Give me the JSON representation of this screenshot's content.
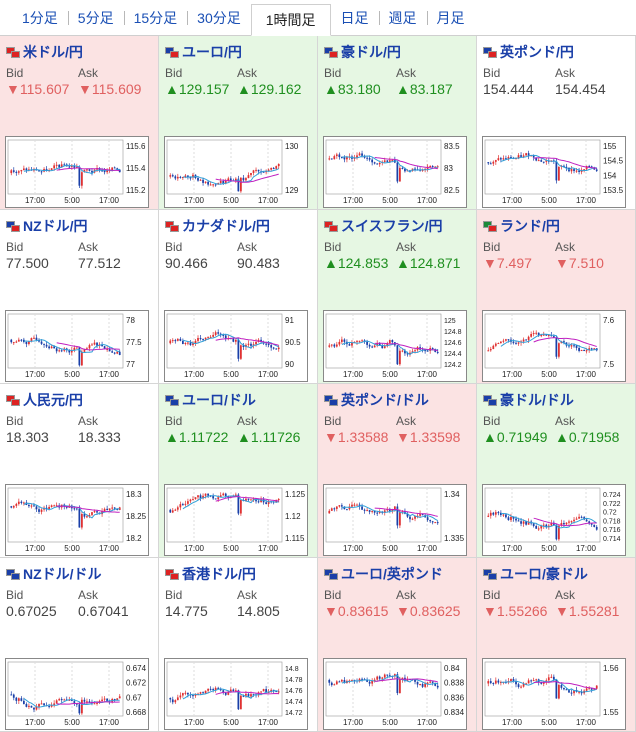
{
  "tabs": [
    {
      "label": "1分足",
      "active": false
    },
    {
      "label": "5分足",
      "active": false
    },
    {
      "label": "15分足",
      "active": false
    },
    {
      "label": "30分足",
      "active": false
    },
    {
      "label": "1時間足",
      "active": true
    },
    {
      "label": "日足",
      "active": false
    },
    {
      "label": "週足",
      "active": false
    },
    {
      "label": "月足",
      "active": false
    }
  ],
  "labels": {
    "bid": "Bid",
    "ask": "Ask"
  },
  "x_ticks": [
    "17:00",
    "5:00",
    "17:00"
  ],
  "colors": {
    "up": "#1f8f1f",
    "down": "#e06060",
    "bull_candle": "#e03030",
    "bear_candle": "#1a3fa8",
    "ma1": "#30a0d8",
    "ma2": "#c020c0"
  },
  "pairs": [
    {
      "name": "米ドル/円",
      "trend": "down",
      "bid": "▼115.607",
      "ask": "▼115.609",
      "yticks": [
        "115.6",
        "115.4",
        "115.2"
      ],
      "flags": [
        "#d22",
        "#d22"
      ]
    },
    {
      "name": "ユーロ/円",
      "trend": "up",
      "bid": "▲129.157",
      "ask": "▲129.162",
      "yticks": [
        "130",
        "129"
      ],
      "flags": [
        "#1a3fa8",
        "#d22"
      ]
    },
    {
      "name": "豪ドル/円",
      "trend": "up",
      "bid": "▲83.180",
      "ask": "▲83.187",
      "yticks": [
        "83.5",
        "83",
        "82.5"
      ],
      "flags": [
        "#1a3fa8",
        "#d22"
      ]
    },
    {
      "name": "英ポンド/円",
      "trend": "flat",
      "bid": "154.444",
      "ask": "154.454",
      "yticks": [
        "155",
        "154.5",
        "154",
        "153.5"
      ],
      "flags": [
        "#1a3fa8",
        "#d22"
      ]
    },
    {
      "name": "NZドル/円",
      "trend": "flat",
      "bid": "77.500",
      "ask": "77.512",
      "yticks": [
        "78",
        "77.5",
        "77"
      ],
      "flags": [
        "#1a3fa8",
        "#d22"
      ]
    },
    {
      "name": "カナダドル/円",
      "trend": "flat",
      "bid": "90.466",
      "ask": "90.483",
      "yticks": [
        "91",
        "90.5",
        "90"
      ],
      "flags": [
        "#d22",
        "#d22"
      ]
    },
    {
      "name": "スイスフラン/円",
      "trend": "up",
      "bid": "▲124.853",
      "ask": "▲124.871",
      "yticks": [
        "125",
        "124.8",
        "124.6",
        "124.4",
        "124.2"
      ],
      "flags": [
        "#d22",
        "#d22"
      ]
    },
    {
      "name": "ランド/円",
      "trend": "down",
      "bid": "▼7.497",
      "ask": "▼7.510",
      "yticks": [
        "7.6",
        "7.5"
      ],
      "flags": [
        "#1c8a3a",
        "#d22"
      ]
    },
    {
      "name": "人民元/円",
      "trend": "flat",
      "bid": "18.303",
      "ask": "18.333",
      "yticks": [
        "18.3",
        "18.25",
        "18.2"
      ],
      "flags": [
        "#d22",
        "#d22"
      ]
    },
    {
      "name": "ユーロ/ドル",
      "trend": "up",
      "bid": "▲1.11722",
      "ask": "▲1.11726",
      "yticks": [
        "1.125",
        "1.12",
        "1.115"
      ],
      "flags": [
        "#1a3fa8",
        "#1a3fa8"
      ]
    },
    {
      "name": "英ポンド/ドル",
      "trend": "down",
      "bid": "▼1.33588",
      "ask": "▼1.33598",
      "yticks": [
        "1.34",
        "1.335"
      ],
      "flags": [
        "#1a3fa8",
        "#1a3fa8"
      ]
    },
    {
      "name": "豪ドル/ドル",
      "trend": "up",
      "bid": "▲0.71949",
      "ask": "▲0.71958",
      "yticks": [
        "0.724",
        "0.722",
        "0.72",
        "0.718",
        "0.716",
        "0.714"
      ],
      "flags": [
        "#1a3fa8",
        "#1a3fa8"
      ]
    },
    {
      "name": "NZドル/ドル",
      "trend": "flat",
      "bid": "0.67025",
      "ask": "0.67041",
      "yticks": [
        "0.674",
        "0.672",
        "0.67",
        "0.668"
      ],
      "flags": [
        "#1a3fa8",
        "#1a3fa8"
      ]
    },
    {
      "name": "香港ドル/円",
      "trend": "flat",
      "bid": "14.775",
      "ask": "14.805",
      "yticks": [
        "14.8",
        "14.78",
        "14.76",
        "14.74",
        "14.72"
      ],
      "flags": [
        "#d22",
        "#d22"
      ]
    },
    {
      "name": "ユーロ/英ポンド",
      "trend": "down",
      "bid": "▼0.83615",
      "ask": "▼0.83625",
      "yticks": [
        "0.84",
        "0.838",
        "0.836",
        "0.834"
      ],
      "flags": [
        "#1a3fa8",
        "#1a3fa8"
      ]
    },
    {
      "name": "ユーロ/豪ドル",
      "trend": "down",
      "bid": "▼1.55266",
      "ask": "▼1.55281",
      "yticks": [
        "1.56",
        "1.55"
      ],
      "flags": [
        "#1a3fa8",
        "#1a3fa8"
      ]
    }
  ]
}
